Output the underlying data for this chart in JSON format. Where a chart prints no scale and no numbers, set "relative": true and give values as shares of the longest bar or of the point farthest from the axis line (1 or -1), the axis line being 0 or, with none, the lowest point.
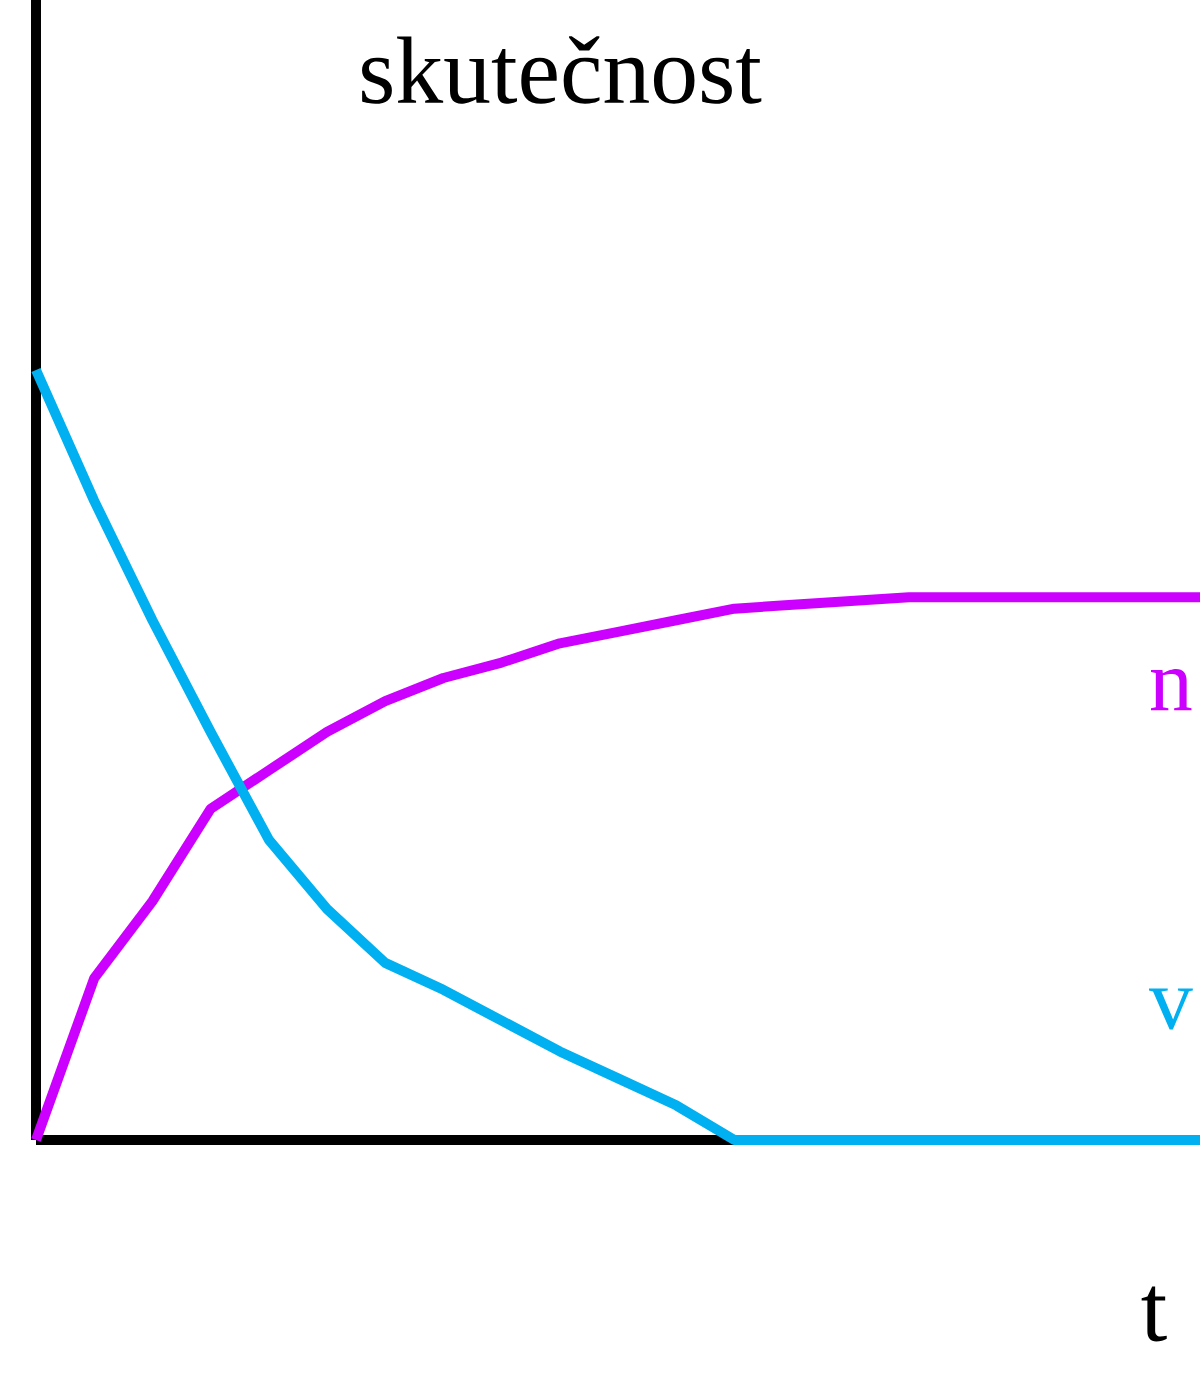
{
  "chart_data": {
    "type": "line",
    "title": "skutečnost",
    "xlabel": "t",
    "relative": true,
    "marker": "none",
    "line_style": "solid",
    "categories": [
      null,
      null,
      null,
      null,
      null,
      null,
      null,
      null,
      null,
      null,
      null,
      null,
      null,
      null,
      null,
      null,
      null,
      null,
      null,
      null,
      null
    ],
    "series": [
      {
        "name": "n",
        "color": "#cc00ff",
        "values": [
          0,
          0.21,
          0.31,
          0.43,
          0.48,
          0.53,
          0.57,
          0.6,
          0.62,
          0.645,
          0.66,
          0.675,
          0.69,
          0.695,
          0.7,
          0.705,
          0.705,
          0.705,
          0.705,
          0.705,
          0.705
        ]
      },
      {
        "name": "v",
        "color": "#00b0f0",
        "values": [
          1,
          0.83,
          0.675,
          0.53,
          0.39,
          0.3,
          0.23,
          0.195,
          0.155,
          0.115,
          0.08,
          0.045,
          0,
          0,
          0,
          0,
          0,
          0,
          0,
          0,
          0
        ]
      }
    ]
  }
}
